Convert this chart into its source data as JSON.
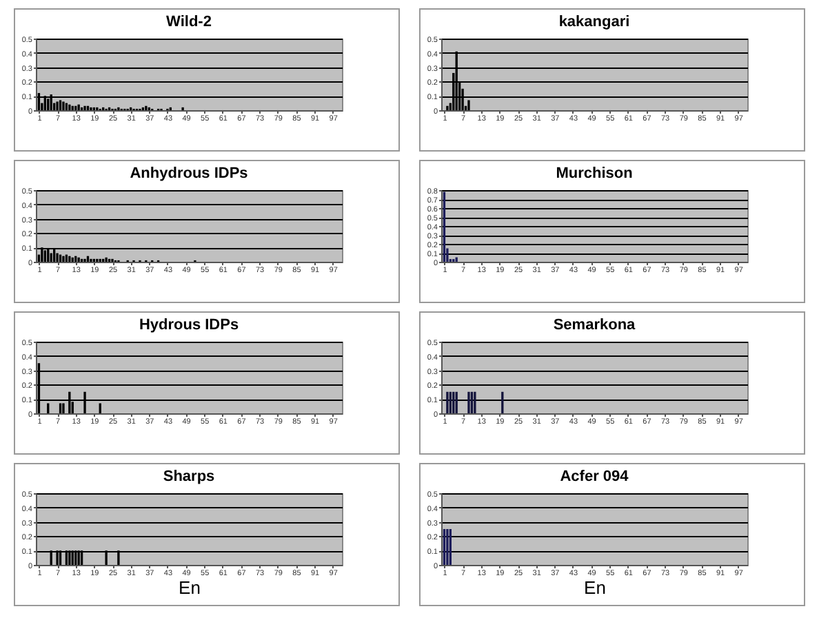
{
  "chart_data": [
    {
      "type": "bar",
      "title": "Wild-2",
      "color": "#000000",
      "grid": "y",
      "xlim": [
        0,
        100
      ],
      "xticks": [
        1,
        7,
        13,
        19,
        25,
        31,
        37,
        43,
        49,
        55,
        61,
        67,
        73,
        79,
        85,
        91,
        97
      ],
      "ylim": [
        0,
        0.5
      ],
      "yticks": [
        0,
        0.1,
        0.2,
        0.3,
        0.4,
        0.5
      ],
      "x": [
        1,
        2,
        3,
        4,
        5,
        6,
        7,
        8,
        9,
        10,
        11,
        12,
        13,
        14,
        15,
        16,
        17,
        18,
        19,
        20,
        21,
        22,
        23,
        24,
        25,
        26,
        27,
        28,
        29,
        30,
        31,
        32,
        33,
        34,
        35,
        36,
        37,
        38,
        40,
        41,
        43,
        44,
        48
      ],
      "values": [
        0.12,
        0.05,
        0.1,
        0.08,
        0.11,
        0.05,
        0.06,
        0.07,
        0.06,
        0.05,
        0.04,
        0.03,
        0.03,
        0.04,
        0.02,
        0.03,
        0.03,
        0.02,
        0.02,
        0.02,
        0.01,
        0.02,
        0.01,
        0.02,
        0.01,
        0.01,
        0.02,
        0.01,
        0.01,
        0.01,
        0.02,
        0.01,
        0.01,
        0.01,
        0.02,
        0.03,
        0.02,
        0.01,
        0.01,
        0.01,
        0.01,
        0.02,
        0.02
      ]
    },
    {
      "type": "bar",
      "title": "kakangari",
      "color": "#000000",
      "grid": "y",
      "xlim": [
        0,
        100
      ],
      "xticks": [
        1,
        7,
        13,
        19,
        25,
        31,
        37,
        43,
        49,
        55,
        61,
        67,
        73,
        79,
        85,
        91,
        97
      ],
      "ylim": [
        0,
        0.5
      ],
      "yticks": [
        0,
        0.1,
        0.2,
        0.3,
        0.4,
        0.5
      ],
      "x": [
        2,
        3,
        4,
        5,
        6,
        7,
        8,
        9
      ],
      "values": [
        0.03,
        0.05,
        0.26,
        0.41,
        0.2,
        0.15,
        0.03,
        0.07
      ]
    },
    {
      "type": "bar",
      "title": "Anhydrous IDPs",
      "color": "#000000",
      "grid": "y",
      "xlim": [
        0,
        100
      ],
      "xticks": [
        1,
        7,
        13,
        19,
        25,
        31,
        37,
        43,
        49,
        55,
        61,
        67,
        73,
        79,
        85,
        91,
        97
      ],
      "ylim": [
        0,
        0.5
      ],
      "yticks": [
        0,
        0.1,
        0.2,
        0.3,
        0.4,
        0.5
      ],
      "x": [
        1,
        2,
        3,
        4,
        5,
        6,
        7,
        8,
        9,
        10,
        11,
        12,
        13,
        14,
        15,
        16,
        17,
        18,
        19,
        20,
        21,
        22,
        23,
        24,
        25,
        26,
        27,
        30,
        32,
        34,
        36,
        38,
        40,
        52
      ],
      "values": [
        0.05,
        0.1,
        0.08,
        0.09,
        0.06,
        0.09,
        0.06,
        0.05,
        0.04,
        0.05,
        0.04,
        0.03,
        0.04,
        0.03,
        0.02,
        0.02,
        0.04,
        0.02,
        0.02,
        0.02,
        0.02,
        0.02,
        0.03,
        0.02,
        0.02,
        0.01,
        0.01,
        0.01,
        0.01,
        0.01,
        0.01,
        0.01,
        0.01,
        0.01
      ]
    },
    {
      "type": "bar",
      "title": "Murchison",
      "color": "#1c1c5a",
      "grid": "y",
      "xlim": [
        0,
        100
      ],
      "xticks": [
        1,
        7,
        13,
        19,
        25,
        31,
        37,
        43,
        49,
        55,
        61,
        67,
        73,
        79,
        85,
        91,
        97
      ],
      "ylim": [
        0,
        0.8
      ],
      "yticks": [
        0,
        0.1,
        0.2,
        0.3,
        0.4,
        0.5,
        0.6,
        0.7,
        0.8
      ],
      "x": [
        1,
        2,
        3,
        4,
        5
      ],
      "values": [
        0.78,
        0.15,
        0.03,
        0.03,
        0.05
      ]
    },
    {
      "type": "bar",
      "title": "Hydrous IDPs",
      "color": "#000000",
      "grid": "y",
      "xlim": [
        0,
        100
      ],
      "xticks": [
        1,
        7,
        13,
        19,
        25,
        31,
        37,
        43,
        49,
        55,
        61,
        67,
        73,
        79,
        85,
        91,
        97
      ],
      "ylim": [
        0,
        0.5
      ],
      "yticks": [
        0,
        0.1,
        0.2,
        0.3,
        0.4,
        0.5
      ],
      "x": [
        1,
        4,
        8,
        9,
        11,
        12,
        16,
        21
      ],
      "values": [
        0.35,
        0.07,
        0.07,
        0.07,
        0.15,
        0.08,
        0.15,
        0.07
      ]
    },
    {
      "type": "bar",
      "title": "Semarkona",
      "color": "#14143c",
      "grid": "y",
      "xlim": [
        0,
        100
      ],
      "xticks": [
        1,
        7,
        13,
        19,
        25,
        31,
        37,
        43,
        49,
        55,
        61,
        67,
        73,
        79,
        85,
        91,
        97
      ],
      "ylim": [
        0,
        0.5
      ],
      "yticks": [
        0,
        0.1,
        0.2,
        0.3,
        0.4,
        0.5
      ],
      "x": [
        2,
        3,
        4,
        5,
        9,
        10,
        11,
        20
      ],
      "values": [
        0.15,
        0.15,
        0.15,
        0.15,
        0.15,
        0.15,
        0.15,
        0.15
      ]
    },
    {
      "type": "bar",
      "title": "Sharps",
      "xlabel": "En",
      "color": "#000000",
      "grid": "y",
      "xlim": [
        0,
        100
      ],
      "xticks": [
        1,
        7,
        13,
        19,
        25,
        31,
        37,
        43,
        49,
        55,
        61,
        67,
        73,
        79,
        85,
        91,
        97
      ],
      "ylim": [
        0,
        0.5
      ],
      "yticks": [
        0,
        0.1,
        0.2,
        0.3,
        0.4,
        0.5
      ],
      "x": [
        5,
        7,
        8,
        10,
        11,
        12,
        13,
        14,
        15,
        23,
        27
      ],
      "values": [
        0.1,
        0.1,
        0.1,
        0.1,
        0.1,
        0.1,
        0.1,
        0.1,
        0.1,
        0.1,
        0.1
      ]
    },
    {
      "type": "bar",
      "title": "Acfer 094",
      "xlabel": "En",
      "color": "#1c1c5a",
      "grid": "y",
      "xlim": [
        0,
        100
      ],
      "xticks": [
        1,
        7,
        13,
        19,
        25,
        31,
        37,
        43,
        49,
        55,
        61,
        67,
        73,
        79,
        85,
        91,
        97
      ],
      "ylim": [
        0,
        0.5
      ],
      "yticks": [
        0,
        0.1,
        0.2,
        0.3,
        0.4,
        0.5
      ],
      "x": [
        1,
        2,
        3
      ],
      "values": [
        0.25,
        0.25,
        0.25
      ]
    }
  ]
}
